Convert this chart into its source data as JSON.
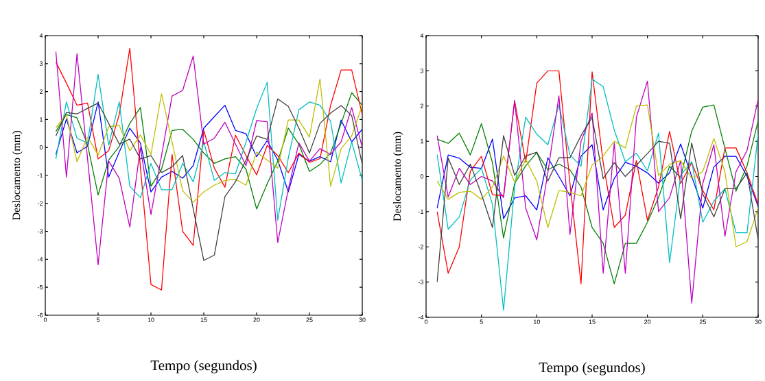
{
  "chart_data": [
    {
      "type": "line",
      "xlabel": "Tempo (segundos)",
      "ylabel": "Deslocamento (mm)",
      "x": [
        1,
        2,
        3,
        4,
        5,
        6,
        7,
        8,
        9,
        10,
        11,
        12,
        13,
        14,
        15,
        16,
        17,
        18,
        19,
        20,
        21,
        22,
        23,
        24,
        25,
        26,
        27,
        28,
        29,
        30
      ],
      "xlim": [
        0,
        30
      ],
      "ylim": [
        -6,
        4
      ],
      "xticks": [
        0,
        5,
        10,
        15,
        20,
        25,
        30
      ],
      "yticks": [
        -6,
        -5,
        -4,
        -3,
        -2,
        -1,
        0,
        1,
        2,
        3,
        4
      ],
      "series": [
        {
          "color": "#0000ff",
          "values": [
            -0.25,
            1.02,
            -0.19,
            0.04,
            1.63,
            -1.06,
            -0.16,
            0.69,
            0.16,
            -1.59,
            -1.06,
            -0.86,
            -1.1,
            -0.65,
            0.69,
            1.1,
            1.51,
            0.61,
            0.49,
            -0.33,
            0.25,
            -0.45,
            -1.59,
            -0.25,
            -0.49,
            -0.33,
            -0.51,
            0.98,
            0.2,
            0.65
          ]
        },
        {
          "color": "#008000",
          "values": [
            0.57,
            1.18,
            1.06,
            0.1,
            -1.7,
            -0.45,
            0.04,
            0.86,
            1.43,
            -1.39,
            -0.78,
            0.61,
            0.65,
            0.29,
            -0.2,
            -0.57,
            -0.41,
            -0.33,
            -0.78,
            -2.2,
            -1.3,
            -0.5,
            0.69,
            0.12,
            -0.86,
            -0.61,
            -0.2,
            0.86,
            1.96,
            1.51
          ]
        },
        {
          "color": "#ff0000",
          "values": [
            3.06,
            2.3,
            1.51,
            1.59,
            -0.41,
            -0.12,
            1.18,
            3.55,
            -0.7,
            -4.9,
            -5.1,
            -0.25,
            -3.0,
            -3.5,
            0.61,
            -0.74,
            -1.42,
            0.44,
            -0.29,
            -0.98,
            0.07,
            -0.29,
            -0.9,
            -0.2,
            -0.53,
            -0.4,
            1.5,
            2.77,
            2.77,
            1.18
          ]
        },
        {
          "color": "#00bfbf",
          "values": [
            -0.41,
            1.63,
            0.33,
            0.16,
            2.61,
            0.08,
            1.63,
            -1.39,
            -1.8,
            -0.57,
            -1.51,
            -1.51,
            -0.57,
            -1.23,
            0.2,
            -1.18,
            -0.9,
            -0.94,
            0.2,
            1.39,
            2.33,
            -2.6,
            -0.37,
            1.35,
            1.63,
            1.51,
            0.94,
            -1.27,
            0.2,
            -1.18
          ]
        },
        {
          "color": "#bf00bf",
          "values": [
            3.43,
            -1.06,
            3.35,
            -0.4,
            -4.2,
            -0.49,
            -1.1,
            -2.85,
            0.0,
            -2.4,
            -0.3,
            1.84,
            2.04,
            3.27,
            0.12,
            0.33,
            0.9,
            0.12,
            -0.65,
            0.96,
            0.92,
            -3.4,
            -1.5,
            0.16,
            -0.49,
            -0.04,
            -0.25,
            0.2,
            1.43,
            0.0
          ]
        },
        {
          "color": "#bfbf00",
          "values": [
            0.71,
            1.18,
            -0.51,
            0.37,
            -0.27,
            0.74,
            0.79,
            -0.12,
            0.45,
            -0.25,
            1.92,
            0.2,
            -1.55,
            -1.96,
            -1.59,
            -1.35,
            -1.18,
            -1.14,
            -1.35,
            -0.16,
            -0.45,
            -0.74,
            0.98,
            0.98,
            0.37,
            2.45,
            -1.39,
            -0.04,
            0.41,
            1.51
          ]
        },
        {
          "color": "#404040",
          "values": [
            0.41,
            1.25,
            1.2,
            1.4,
            1.59,
            0.86,
            0.12,
            0.3,
            -0.41,
            -0.29,
            -0.9,
            -0.69,
            -0.29,
            -2.2,
            -4.04,
            -3.85,
            -1.76,
            -1.23,
            -0.45,
            0.41,
            0.29,
            1.74,
            1.47,
            0.69,
            -0.2,
            0.86,
            1.23,
            1.5,
            1.14,
            -0.61
          ]
        }
      ]
    },
    {
      "type": "line",
      "xlabel": "Tempo (segundos)",
      "ylabel": "Deslocamento (mm)",
      "x": [
        1,
        2,
        3,
        4,
        5,
        6,
        7,
        8,
        9,
        10,
        11,
        12,
        13,
        14,
        15,
        16,
        17,
        18,
        19,
        20,
        21,
        22,
        23,
        24,
        25,
        26,
        27,
        28,
        29,
        30
      ],
      "xlim": [
        0,
        30
      ],
      "ylim": [
        -4,
        4
      ],
      "xticks": [
        0,
        5,
        10,
        15,
        20,
        25,
        30
      ],
      "yticks": [
        -4,
        -3,
        -2,
        -1,
        0,
        1,
        2,
        3,
        4
      ],
      "series": [
        {
          "color": "#0000ff",
          "values": [
            -0.9,
            0.61,
            0.52,
            0.26,
            0.23,
            1.06,
            -1.2,
            -0.61,
            -0.55,
            -0.95,
            0.53,
            0.0,
            -0.55,
            0.58,
            0.9,
            -0.95,
            -0.06,
            0.4,
            0.29,
            0.1,
            -0.19,
            0.1,
            0.92,
            0.0,
            -0.9,
            0.27,
            0.57,
            0.57,
            0.0,
            -0.85
          ]
        },
        {
          "color": "#008000",
          "values": [
            1.06,
            0.94,
            1.23,
            0.61,
            1.5,
            0.39,
            -1.75,
            -0.2,
            0.3,
            0.68,
            0.19,
            0.35,
            0.19,
            -0.3,
            -1.45,
            -1.9,
            -3.05,
            -1.9,
            -1.9,
            -1.3,
            -0.6,
            0.29,
            -0.03,
            1.29,
            1.97,
            2.03,
            0.8,
            -0.42,
            0.3,
            1.58
          ]
        },
        {
          "color": "#ff0000",
          "values": [
            -1.0,
            -2.75,
            -2.0,
            0.15,
            0.57,
            -0.52,
            -0.55,
            2.15,
            0.4,
            2.65,
            3.0,
            3.0,
            -0.2,
            -3.05,
            2.97,
            0.39,
            -1.45,
            -1.1,
            0.45,
            -1.25,
            -0.3,
            1.28,
            -0.2,
            0.39,
            -0.4,
            -0.95,
            0.81,
            0.81,
            0.1,
            -0.8
          ]
        },
        {
          "color": "#00bfbf",
          "values": [
            0.62,
            -1.5,
            -1.15,
            -0.1,
            0.23,
            -0.8,
            -3.8,
            -0.3,
            1.68,
            1.2,
            0.9,
            2.03,
            0.61,
            0.29,
            2.77,
            2.55,
            1.32,
            0.42,
            0.66,
            0.16,
            1.23,
            -2.45,
            0.03,
            0.42,
            -1.3,
            -0.7,
            -0.35,
            -1.6,
            -1.6,
            1.2
          ]
        },
        {
          "color": "#bf00bf",
          "values": [
            1.16,
            -0.58,
            0.23,
            -0.23,
            0.0,
            -0.13,
            -0.6,
            2.16,
            -0.9,
            -1.8,
            0.1,
            2.29,
            -1.65,
            1.0,
            1.8,
            -2.75,
            0.95,
            -2.75,
            1.68,
            2.71,
            -1.0,
            -0.6,
            0.45,
            -3.6,
            -0.2,
            0.9,
            -1.7,
            0.13,
            0.74,
            2.19
          ]
        },
        {
          "color": "#bfbf00",
          "values": [
            -0.13,
            -0.65,
            -0.45,
            -0.42,
            -0.65,
            -0.3,
            0.58,
            -0.16,
            0.48,
            -0.13,
            -1.45,
            -0.4,
            -0.45,
            -0.55,
            0.32,
            0.58,
            1.0,
            0.81,
            2.0,
            2.03,
            0.03,
            0.34,
            0.45,
            -0.06,
            0.14,
            1.08,
            0.13,
            -2.0,
            -1.85,
            -0.9
          ]
        },
        {
          "color": "#404040",
          "values": [
            -3.0,
            0.52,
            -0.23,
            0.35,
            -0.5,
            -1.45,
            1.16,
            0.03,
            0.58,
            0.69,
            -0.13,
            0.53,
            0.53,
            1.16,
            1.68,
            -0.06,
            0.39,
            0.0,
            0.32,
            0.65,
            1.0,
            0.94,
            -1.2,
            0.95,
            -0.5,
            -1.15,
            -0.35,
            -0.35,
            0.1,
            -1.8
          ]
        }
      ]
    }
  ]
}
